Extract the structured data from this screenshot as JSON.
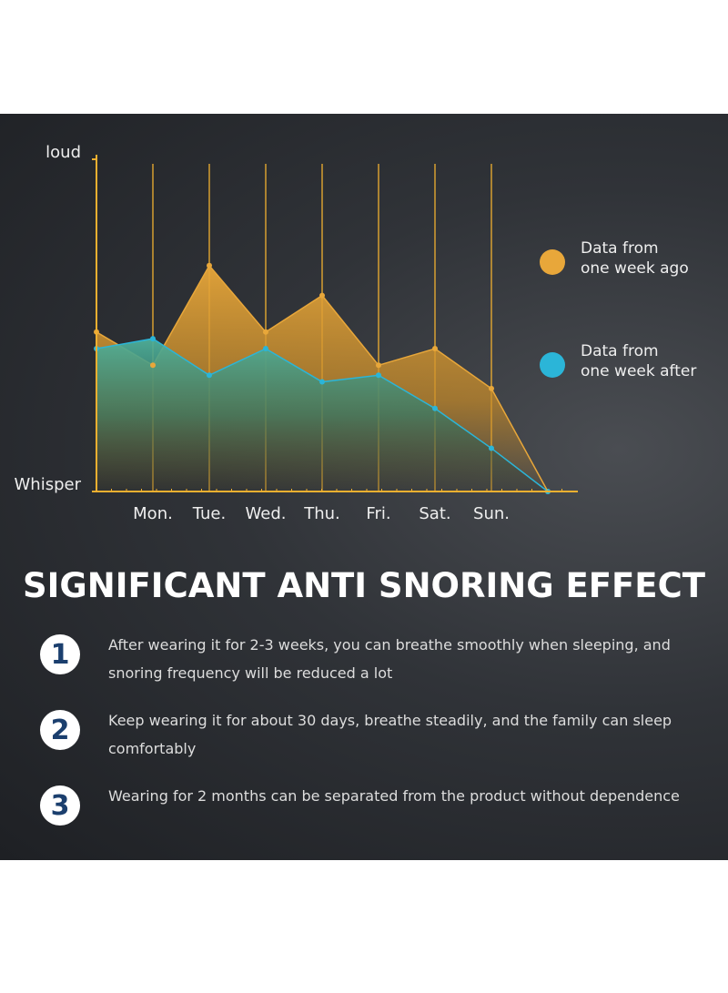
{
  "chart_data": {
    "type": "area",
    "categories": [
      null,
      "Mon.",
      "Tue.",
      "Wed.",
      "Thu.",
      "Fri.",
      "Sat.",
      "Sun.",
      null
    ],
    "series": [
      {
        "name": "Data from\none week ago",
        "color": "#e8a73a",
        "values": [
          48,
          38,
          68,
          48,
          59,
          38,
          43,
          31,
          0
        ]
      },
      {
        "name": "Data from\none week after",
        "color": "#2bb5d8",
        "values": [
          43,
          46,
          35,
          43,
          33,
          35,
          25,
          13,
          0
        ]
      }
    ],
    "ylim": [
      0,
      100
    ],
    "yticks": [
      {
        "value": 0,
        "label": "Whisper"
      },
      {
        "value": 100,
        "label": "loud"
      }
    ]
  },
  "heading": "SIGNIFICANT ANTI SNORING EFFECT",
  "items": [
    {
      "number": "1",
      "text": "After wearing it for 2-3 weeks, you can breathe smoothly when sleeping, and snoring frequency will be reduced a lot"
    },
    {
      "number": "2",
      "text": "Keep wearing it for about 30 days, breathe steadily, and the family can sleep comfortably"
    },
    {
      "number": "3",
      "text": "Wearing for 2 months can be separated from the product without dependence"
    }
  ]
}
